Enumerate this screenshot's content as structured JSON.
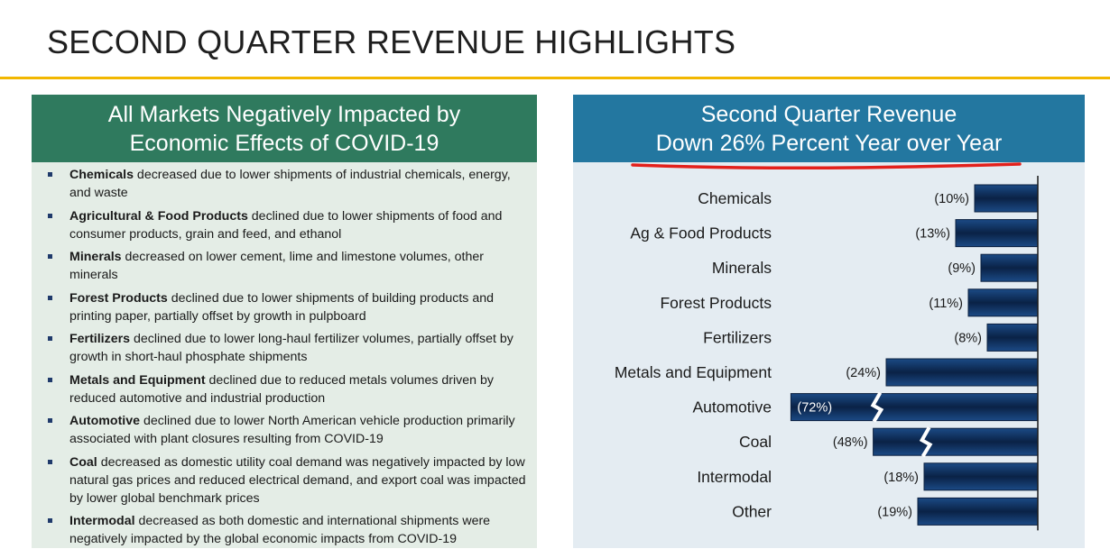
{
  "page": {
    "title": "SECOND QUARTER REVENUE HIGHLIGHTS"
  },
  "colors": {
    "title_rule": "#f2b700",
    "left_header_bg": "#2f7a5e",
    "left_panel_bg": "#e4ede6",
    "right_header_bg": "#2377a0",
    "right_panel_bg": "#e4ecf2",
    "bar_dark": "#0a2246",
    "bar_light": "#1b4a85",
    "underline": "#e3201b"
  },
  "left_panel": {
    "header_line1": "All Markets Negatively Impacted by",
    "header_line2": "Economic Effects of COVID-19",
    "items": [
      {
        "bold": "Chemicals",
        "text": " decreased due to lower shipments of industrial chemicals, energy, and waste"
      },
      {
        "bold": "Agricultural & Food Products",
        "text": " declined due to lower shipments of food and consumer products, grain and feed, and ethanol"
      },
      {
        "bold": "Minerals",
        "text": " decreased on lower cement, lime and limestone volumes, other minerals"
      },
      {
        "bold": "Forest Products",
        "text": " declined due to lower shipments of building products and printing paper, partially offset by growth in pulpboard"
      },
      {
        "bold": "Fertilizers",
        "text": " declined due to lower long-haul fertilizer volumes, partially offset by growth in short-haul phosphate shipments"
      },
      {
        "bold": "Metals and Equipment",
        "text": " declined due to reduced metals volumes driven by reduced automotive and industrial production"
      },
      {
        "bold": "Automotive",
        "text": " declined due to lower North American vehicle production primarily associated with plant closures resulting from COVID-19"
      },
      {
        "bold": "Coal",
        "text": " decreased as domestic utility coal demand was negatively impacted by low natural gas prices and reduced electrical demand, and export coal was impacted by lower global benchmark prices"
      },
      {
        "bold": "Intermodal",
        "text": " decreased as both domestic and international shipments were negatively impacted by the global economic impacts from COVID-19"
      }
    ]
  },
  "right_panel": {
    "header_line1": "Second Quarter Revenue",
    "header_line2": "Down 26% Percent Year over Year"
  },
  "chart_data": {
    "type": "bar",
    "orientation": "horizontal",
    "title": "",
    "xlabel": "",
    "ylabel": "",
    "categories": [
      "Chemicals",
      "Ag & Food Products",
      "Minerals",
      "Forest Products",
      "Fertilizers",
      "Metals and Equipment",
      "Automotive",
      "Coal",
      "Intermodal",
      "Other"
    ],
    "values": [
      -10,
      -13,
      -9,
      -11,
      -8,
      -24,
      -72,
      -48,
      -18,
      -19
    ],
    "labels": [
      "(10%)",
      "(13%)",
      "(9%)",
      "(11%)",
      "(8%)",
      "(24%)",
      "(72%)",
      "(48%)",
      "(18%)",
      "(19%)"
    ],
    "axis_break": [
      "Automotive",
      "Coal"
    ],
    "grid": false,
    "legend": "none"
  }
}
